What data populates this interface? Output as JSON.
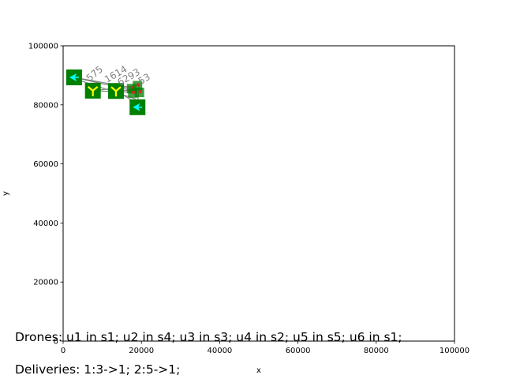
{
  "chart_data": {
    "type": "scatter",
    "title": "",
    "xlabel": "x",
    "ylabel": "y",
    "xlim": [
      0,
      100000
    ],
    "ylim": [
      0,
      100000
    ],
    "xticks": [
      "0",
      "20000",
      "40000",
      "60000",
      "80000",
      "100000"
    ],
    "yticks": [
      "0",
      "20000",
      "40000",
      "60000",
      "80000",
      "100000"
    ],
    "grid": false,
    "stations": [
      {
        "x": 2800,
        "y": 89300,
        "glyph": "cyan-arrow"
      },
      {
        "x": 7600,
        "y": 84800,
        "glyph": "yellow-tripod"
      },
      {
        "x": 13500,
        "y": 84700,
        "glyph": "yellow-tripod"
      },
      {
        "x": 19000,
        "y": 79200,
        "glyph": "cyan-arrow"
      },
      {
        "x": 17500,
        "y": 85500,
        "glyph": "small"
      },
      {
        "x": 19000,
        "y": 86500,
        "glyph": "small"
      },
      {
        "x": 17800,
        "y": 84000,
        "glyph": "small"
      },
      {
        "x": 19500,
        "y": 84200,
        "glyph": "small"
      }
    ],
    "routes": [
      {
        "from": [
          2800,
          89300
        ],
        "to": [
          19000,
          84500
        ]
      },
      {
        "from": [
          2800,
          89300
        ],
        "to": [
          17600,
          85800
        ]
      },
      {
        "from": [
          7600,
          84800
        ],
        "to": [
          19000,
          84200
        ]
      },
      {
        "from": [
          7600,
          84800
        ],
        "to": [
          17800,
          86300
        ]
      },
      {
        "from": [
          13500,
          84700
        ],
        "to": [
          19000,
          80500
        ]
      },
      {
        "from": [
          13500,
          84700
        ],
        "to": [
          19200,
          85200
        ]
      },
      {
        "from": [
          3500,
          88600
        ],
        "to": [
          18500,
          82000
        ]
      },
      {
        "from": [
          19000,
          79200
        ],
        "to": [
          19400,
          86800
        ]
      }
    ],
    "route_labels": [
      {
        "text": "575",
        "x": 6800,
        "y": 87800,
        "angle": -40
      },
      {
        "text": "1614",
        "x": 11200,
        "y": 87400,
        "angle": -30
      },
      {
        "text": "6293",
        "x": 14500,
        "y": 86400,
        "angle": -30
      },
      {
        "text": "53",
        "x": 19800,
        "y": 86800,
        "angle": -30
      }
    ],
    "colors": {
      "station": "#008000",
      "route": "#808080",
      "arrow": "#00ffff",
      "tripod": "#ffff00",
      "marker": "#d62728"
    }
  },
  "captions": {
    "drones": "Drones: u1 in s1; u2 in s4; u3 in s3; u4 in s2; u5 in s5; u6 in s1;",
    "deliveries": "Deliveries: 1:3->1; 2:5->1;"
  }
}
